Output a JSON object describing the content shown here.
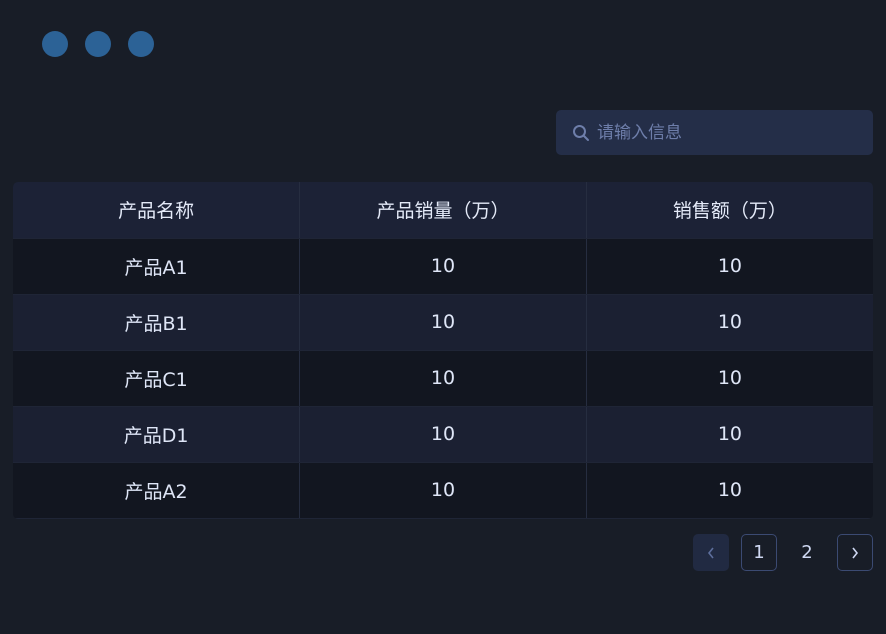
{
  "window_controls": {
    "color": "#2c6296",
    "count": 3
  },
  "search": {
    "placeholder": "请输入信息",
    "value": ""
  },
  "table": {
    "headers": [
      "产品名称",
      "产品销量（万）",
      "销售额（万）"
    ],
    "rows": [
      [
        "产品A1",
        "10",
        "10"
      ],
      [
        "产品B1",
        "10",
        "10"
      ],
      [
        "产品C1",
        "10",
        "10"
      ],
      [
        "产品D1",
        "10",
        "10"
      ],
      [
        "产品A2",
        "10",
        "10"
      ]
    ]
  },
  "pagination": {
    "pages": [
      "1",
      "2"
    ],
    "current": "2"
  }
}
